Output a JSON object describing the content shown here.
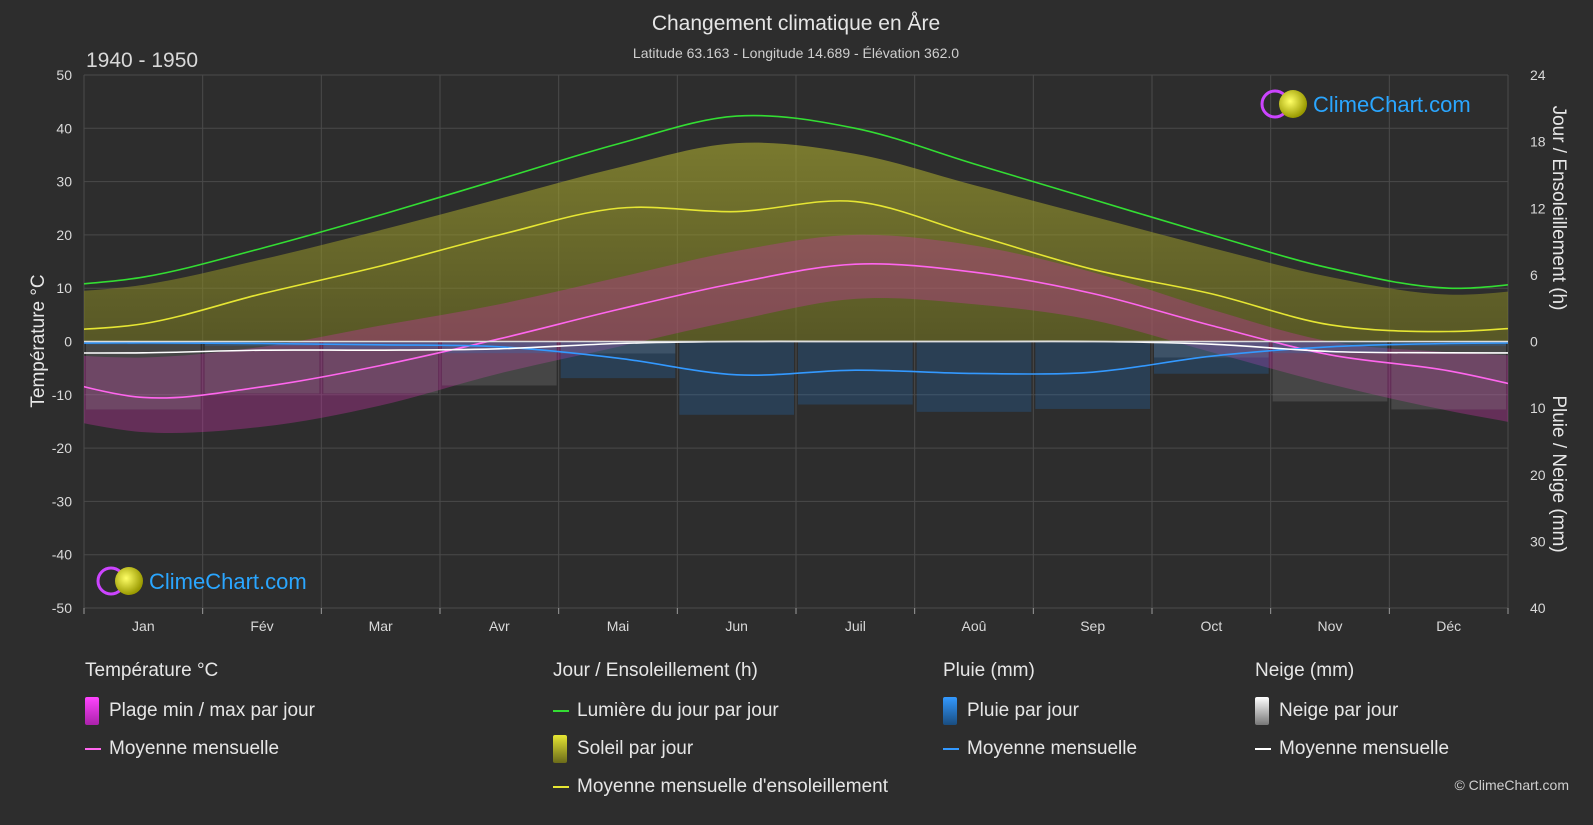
{
  "chart_data": {
    "type": "line",
    "title": "Changement climatique en Åre",
    "subtitle": "Latitude 63.163 - Longitude 14.689 - Élévation 362.0",
    "period": "1940 - 1950",
    "categories": [
      "Jan",
      "Fév",
      "Mar",
      "Avr",
      "Mai",
      "Jun",
      "Juil",
      "Aoû",
      "Sep",
      "Oct",
      "Nov",
      "Déc"
    ],
    "ylabel_left": "Température °C",
    "ylabel_right_top": "Jour / Ensoleillement (h)",
    "ylabel_right_bottom": "Pluie / Neige (mm)",
    "ylim_left": [
      -50,
      50
    ],
    "yticks_left": [
      "50",
      "40",
      "30",
      "20",
      "10",
      "0",
      "-10",
      "-20",
      "-30",
      "-40",
      "-50"
    ],
    "yticks_right_top": [
      "24",
      "18",
      "12",
      "6",
      "0"
    ],
    "yticks_right_bottom": [
      "10",
      "20",
      "30",
      "40"
    ],
    "series": [
      {
        "name": "Lumière du jour par jour",
        "unit": "h",
        "color": "#33dd33",
        "values": [
          5.8,
          8.4,
          11.4,
          14.6,
          17.8,
          20.3,
          19.2,
          16.0,
          12.8,
          9.6,
          6.6,
          4.8
        ]
      },
      {
        "name": "Moyenne mensuelle d'ensoleillement",
        "unit": "h",
        "color": "#e6e633",
        "values": [
          1.6,
          4.3,
          6.8,
          9.6,
          12.0,
          11.7,
          12.6,
          9.6,
          6.5,
          4.3,
          1.5,
          0.9
        ]
      },
      {
        "name": "Température moyenne mensuelle",
        "unit": "°C",
        "color": "#ff66ee",
        "values": [
          -10.5,
          -8.5,
          -4.5,
          0.5,
          6.0,
          11.0,
          14.5,
          13.0,
          9.0,
          3.0,
          -2.5,
          -5.5
        ]
      },
      {
        "name": "Pluie moyenne mensuelle",
        "unit": "mm",
        "color": "#3399ff",
        "values": [
          0.2,
          0.3,
          0.5,
          0.8,
          2.5,
          5.0,
          4.3,
          4.8,
          4.6,
          2.2,
          0.8,
          0.3
        ]
      },
      {
        "name": "Neige moyenne mensuelle",
        "unit": "mm",
        "color": "#ffffff",
        "values": [
          1.7,
          1.3,
          1.3,
          1.1,
          0.3,
          0.0,
          0.0,
          0.0,
          0.0,
          0.4,
          1.5,
          1.7
        ]
      }
    ],
    "temp_range_daily": {
      "min": [
        -17,
        -16,
        -12,
        -6,
        -1,
        4,
        8,
        7,
        4,
        -2,
        -8,
        -13
      ],
      "max": [
        -3,
        -1,
        3,
        7,
        12,
        17,
        20,
        18,
        13,
        6,
        0,
        -2
      ]
    }
  },
  "legend": {
    "temperature": {
      "title": "Température °C",
      "items": [
        "Plage min / max par jour",
        "Moyenne mensuelle"
      ]
    },
    "sun": {
      "title": "Jour / Ensoleillement (h)",
      "items": [
        "Lumière du jour par jour",
        "Soleil par jour",
        "Moyenne mensuelle d'ensoleillement"
      ]
    },
    "rain": {
      "title": "Pluie (mm)",
      "items": [
        "Pluie par jour",
        "Moyenne mensuelle"
      ]
    },
    "snow": {
      "title": "Neige (mm)",
      "items": [
        "Neige par jour",
        "Moyenne mensuelle"
      ]
    }
  },
  "branding": {
    "logo_text": "ClimeChart.com",
    "copyright": "© ClimeChart.com"
  }
}
